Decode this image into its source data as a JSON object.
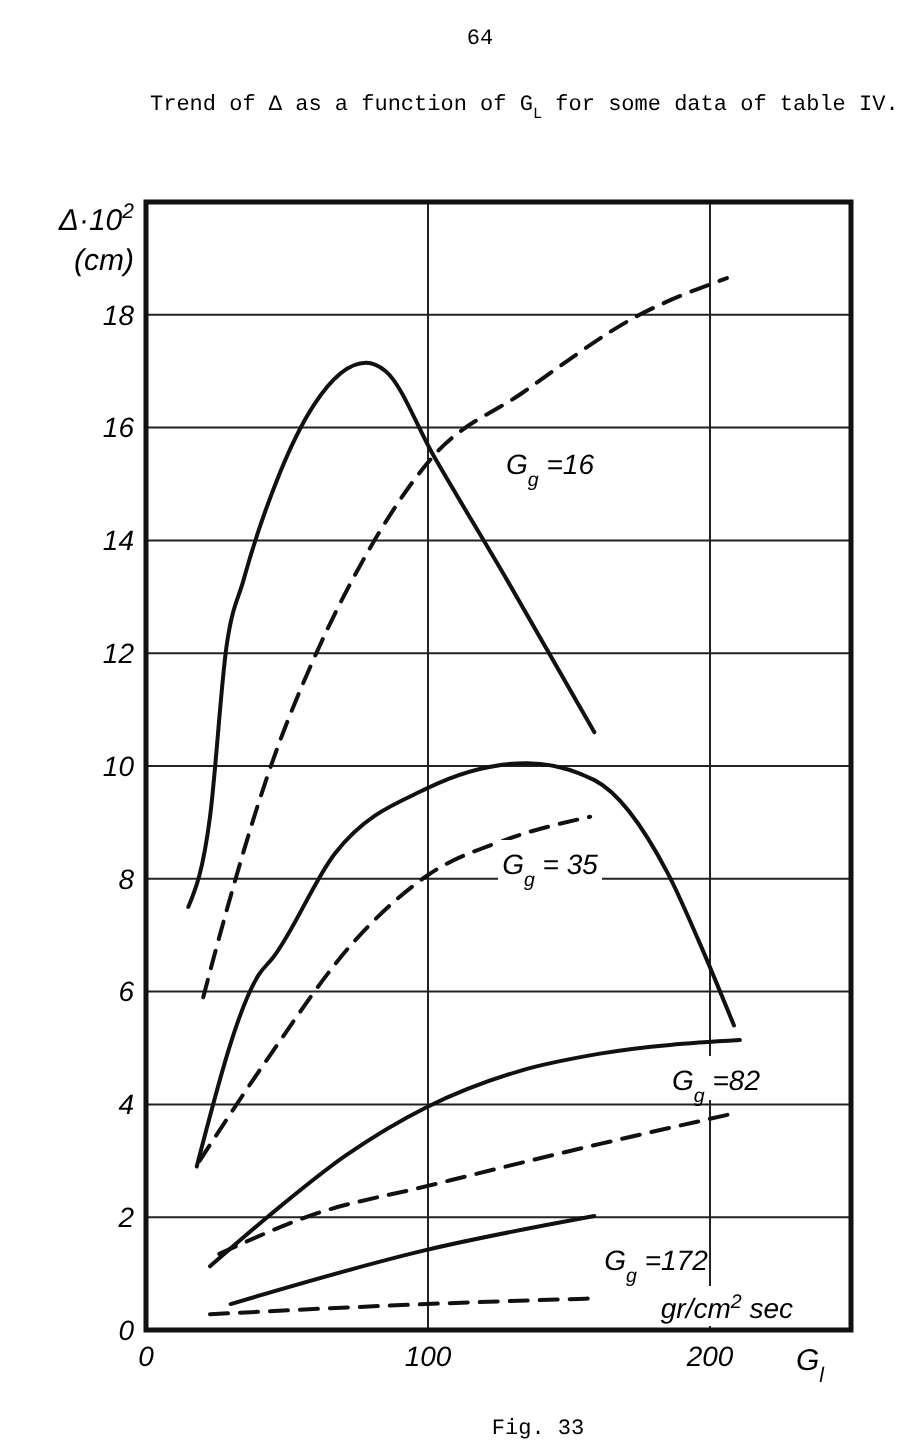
{
  "chart_data": {
    "type": "line",
    "title": "Trend of Δ as a function of G$_{L}$ for some data of table IV.",
    "xlabel": "G$_{l}$",
    "ylabel": "Δ·10$^{2}$ (cm)",
    "xlim": [
      0,
      250
    ],
    "ylim": [
      0,
      20
    ],
    "xticks": [
      0,
      100,
      200
    ],
    "yticks": [
      0,
      2,
      4,
      6,
      8,
      10,
      12,
      14,
      16,
      18
    ],
    "grid": true,
    "annotations": [
      "64",
      "Fig. 33",
      "gr/cm$^{2}$sec",
      "G$_{g}$ =16",
      "G$_{g}$ = 35",
      "G$_{g}$ =82",
      "G$_{g}$ =172"
    ],
    "series": [
      {
        "color": "#111111",
        "line_style": "solid",
        "x": [
          15,
          22.7,
          28.5,
          34.6,
          47.5,
          59.5,
          78,
          85,
          102,
          128,
          159
        ],
        "values": [
          7.5,
          9.1,
          12.1,
          13.3,
          15.2,
          16.4,
          17.15,
          17.0,
          15.5,
          13.3,
          10.6
        ]
      },
      {
        "color": "#111111",
        "line_style": "dashed",
        "x": [
          20.3,
          24,
          45,
          59.5,
          77,
          102,
          133,
          175,
          206
        ],
        "values": [
          5.9,
          6.6,
          10.1,
          11.9,
          13.65,
          15.5,
          16.6,
          18.0,
          18.65
        ]
      },
      {
        "color": "#111111",
        "line_style": "solid",
        "x": [
          18,
          40,
          45,
          67,
          99.5,
          135,
          159,
          185,
          196,
          208.5
        ],
        "values": [
          2.9,
          6.3,
          6.6,
          8.45,
          9.6,
          10.05,
          9.75,
          8.1,
          6.9,
          5.4
        ]
      },
      {
        "color": "#111111",
        "line_style": "dashed",
        "x": [
          19,
          43,
          74,
          99.5,
          128,
          157.5
        ],
        "values": [
          3.0,
          4.8,
          6.9,
          8.05,
          8.7,
          9.1
        ]
      },
      {
        "color": "#111111",
        "line_style": "solid",
        "x": [
          22.7,
          43,
          71,
          99.5,
          133,
          161,
          210.6
        ],
        "values": [
          1.13,
          2.0,
          3.1,
          3.95,
          4.6,
          4.9,
          5.14
        ]
      },
      {
        "color": "#111111",
        "line_style": "dashed",
        "x": [
          26,
          59.5,
          99.5,
          161,
          208.5
        ],
        "values": [
          1.35,
          2.05,
          2.55,
          3.3,
          3.84
        ]
      },
      {
        "color": "#111111",
        "line_style": "solid",
        "x": [
          30,
          99.5,
          159
        ],
        "values": [
          0.46,
          1.42,
          2.02
        ]
      },
      {
        "color": "#111111",
        "line_style": "dashed",
        "x": [
          22.7,
          99.5,
          159
        ],
        "values": [
          0.28,
          0.46,
          0.56
        ]
      }
    ]
  }
}
